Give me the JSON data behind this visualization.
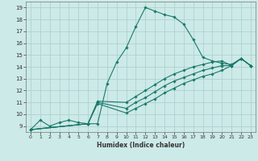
{
  "xlabel": "Humidex (Indice chaleur)",
  "bg_color": "#cceae7",
  "grid_color": "#aacccc",
  "line_color": "#1a7a6a",
  "xlim": [
    -0.5,
    23.5
  ],
  "ylim": [
    8.5,
    19.5
  ],
  "xticks": [
    0,
    1,
    2,
    3,
    4,
    5,
    6,
    7,
    8,
    9,
    10,
    11,
    12,
    13,
    14,
    15,
    16,
    17,
    18,
    19,
    20,
    21,
    22,
    23
  ],
  "yticks": [
    9,
    10,
    11,
    12,
    13,
    14,
    15,
    16,
    17,
    18,
    19
  ],
  "series": [
    {
      "x": [
        0,
        1,
        2,
        3,
        4,
        5,
        6,
        7,
        8,
        9,
        10,
        11,
        12,
        13,
        14,
        15,
        16,
        17,
        18,
        19,
        20,
        21,
        22,
        23
      ],
      "y": [
        8.7,
        9.5,
        9.0,
        9.3,
        9.5,
        9.3,
        9.2,
        9.2,
        12.6,
        14.4,
        15.6,
        17.4,
        19.0,
        18.7,
        18.4,
        18.2,
        17.6,
        16.3,
        14.8,
        14.5,
        14.3,
        14.2,
        14.7,
        14.1
      ]
    },
    {
      "x": [
        0,
        6,
        7,
        10,
        11,
        12,
        13,
        14,
        15,
        16,
        17,
        18,
        19,
        20,
        21,
        22,
        23
      ],
      "y": [
        8.7,
        9.2,
        11.1,
        11.0,
        11.5,
        12.0,
        12.5,
        13.0,
        13.4,
        13.7,
        14.0,
        14.2,
        14.4,
        14.5,
        14.1,
        14.7,
        14.1
      ]
    },
    {
      "x": [
        0,
        6,
        7,
        10,
        11,
        12,
        13,
        14,
        15,
        16,
        17,
        18,
        19,
        20,
        21,
        22,
        23
      ],
      "y": [
        8.7,
        9.2,
        11.0,
        10.5,
        11.0,
        11.4,
        11.9,
        12.4,
        12.8,
        13.1,
        13.4,
        13.7,
        13.9,
        14.1,
        14.1,
        14.7,
        14.1
      ]
    },
    {
      "x": [
        0,
        6,
        7,
        10,
        11,
        12,
        13,
        14,
        15,
        16,
        17,
        18,
        19,
        20,
        21,
        22,
        23
      ],
      "y": [
        8.7,
        9.2,
        10.9,
        10.1,
        10.5,
        10.9,
        11.3,
        11.8,
        12.2,
        12.6,
        12.9,
        13.2,
        13.4,
        13.7,
        14.1,
        14.7,
        14.1
      ]
    }
  ]
}
